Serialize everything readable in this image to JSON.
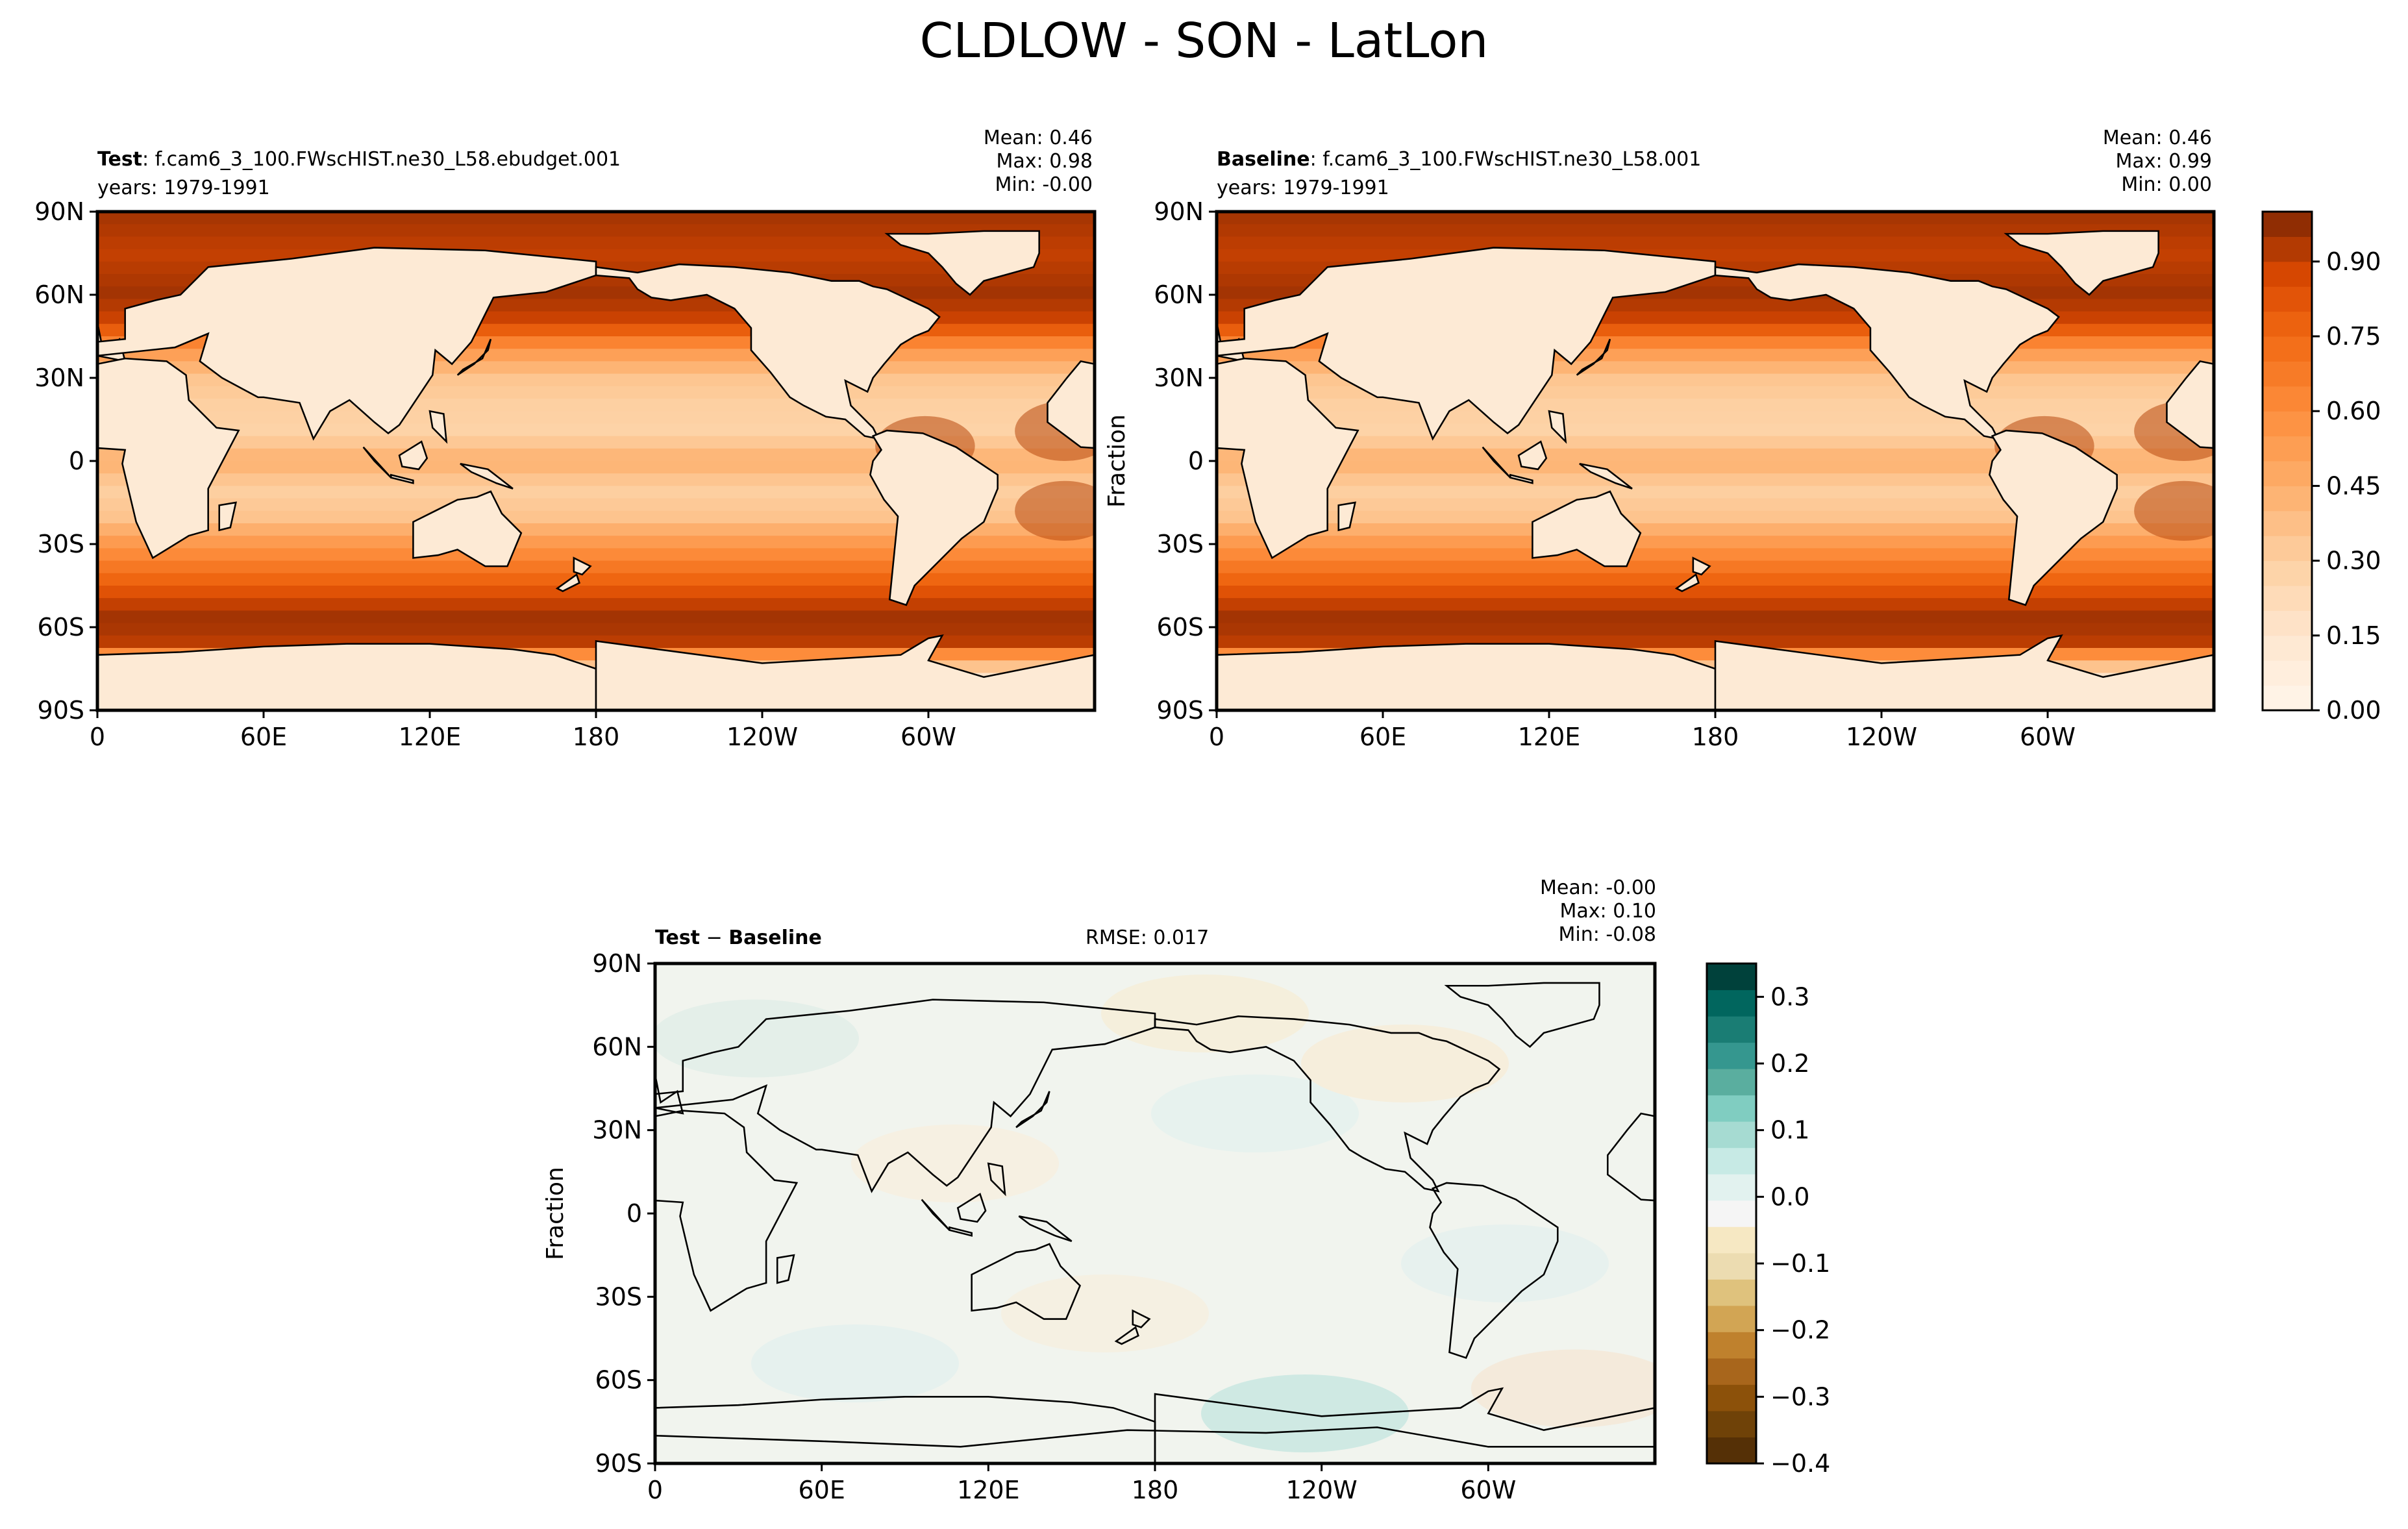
{
  "figure_title": "CLDLOW - SON - LatLon",
  "panels": [
    {
      "id": "test",
      "label_bold": "Test",
      "label_rest": ": f.cam6_3_100.FWscHIST.ne30_L58.ebudget.001",
      "years": "years: 1979-1991",
      "stats": {
        "mean": "Mean:  0.46",
        "max": "Max:  0.98",
        "min": "Min: -0.00"
      }
    },
    {
      "id": "baseline",
      "label_bold": "Baseline",
      "label_rest": ": f.cam6_3_100.FWscHIST.ne30_L58.001",
      "years": "years: 1979-1991",
      "ylabel": "Fraction",
      "stats": {
        "mean": "Mean:  0.46",
        "max": "Max:  0.99",
        "min": "Min:  0.00"
      }
    },
    {
      "id": "diff",
      "label_bold": "Test",
      "label_mid": " − ",
      "label_bold2": "Baseline",
      "rmse": "RMSE: 0.017",
      "ylabel": "Fraction",
      "stats": {
        "mean": "Mean: -0.00",
        "max": "Max:  0.10",
        "min": "Min: -0.08"
      }
    }
  ],
  "map_axes": {
    "lat_ticks": [
      "90N",
      "60N",
      "30N",
      "0",
      "30S",
      "60S",
      "90S"
    ],
    "lon_ticks": [
      "0",
      "60E",
      "120E",
      "180",
      "120W",
      "60W"
    ]
  },
  "colorbars": {
    "field": {
      "ticks": [
        "0.00",
        "0.15",
        "0.30",
        "0.45",
        "0.60",
        "0.75",
        "0.90"
      ],
      "range": [
        0,
        1.0
      ],
      "colormap": "Oranges (white to dark brown-orange)"
    },
    "diff": {
      "ticks": [
        "0.3",
        "0.2",
        "0.1",
        "0.0",
        "−0.1",
        "−0.2",
        "−0.3",
        "−0.4"
      ],
      "range": [
        -0.4,
        0.35
      ],
      "colormap": "BrBG (brown to teal)"
    }
  },
  "colors": {
    "field_low": "#fff5eb",
    "field_high": "#7f2704",
    "diff_pos": "#00413b",
    "diff_neg": "#553006",
    "diff_zero": "#f1f4ee",
    "coast": "#000000"
  }
}
